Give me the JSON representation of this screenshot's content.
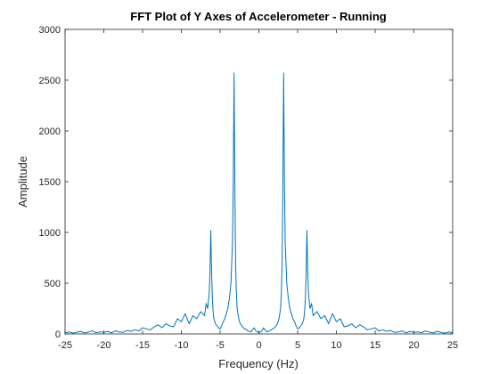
{
  "chart_data": {
    "type": "line",
    "title": "FFT Plot of Y Axes of Accelerometer - Running",
    "xlabel": "Frequency (Hz)",
    "ylabel": "Amplitude",
    "xlim": [
      -25,
      25
    ],
    "ylim": [
      0,
      3000
    ],
    "xticks": [
      -25,
      -20,
      -15,
      -10,
      -5,
      0,
      5,
      10,
      15,
      20,
      25
    ],
    "yticks": [
      0,
      500,
      1000,
      1500,
      2000,
      2500,
      3000
    ],
    "grid": false,
    "box": true,
    "line_color": "#0072BD",
    "series": [
      {
        "x": [
          -25,
          -24.5,
          -24,
          -23.5,
          -23,
          -22.5,
          -22,
          -21.5,
          -21,
          -20.5,
          -20,
          -19.5,
          -19,
          -18.5,
          -18,
          -17.5,
          -17,
          -16.5,
          -16,
          -15.5,
          -15,
          -14.5,
          -14,
          -13.5,
          -13,
          -12.5,
          -12,
          -11.5,
          -11,
          -10.5,
          -10,
          -9.5,
          -9,
          -8.5,
          -8,
          -7.5,
          -7,
          -6.8,
          -6.6,
          -6.4,
          -6.3,
          -6.2,
          -6.1,
          -6.0,
          -5.9,
          -5.8,
          -5.6,
          -5.4,
          -5.2,
          -5.0,
          -4.8,
          -4.6,
          -4.4,
          -4.2,
          -4.0,
          -3.8,
          -3.6,
          -3.4,
          -3.3,
          -3.2,
          -3.1,
          -3.0,
          -2.9,
          -2.8,
          -2.6,
          -2.4,
          -2.2,
          -2.0,
          -1.8,
          -1.6,
          -1.4,
          -1.2,
          -1.0,
          -0.8,
          -0.6,
          -0.4,
          -0.2,
          0,
          0.2,
          0.4,
          0.6,
          0.8,
          1.0,
          1.2,
          1.4,
          1.6,
          1.8,
          2.0,
          2.2,
          2.4,
          2.6,
          2.8,
          2.9,
          3.0,
          3.1,
          3.2,
          3.3,
          3.4,
          3.6,
          3.8,
          4.0,
          4.2,
          4.4,
          4.6,
          4.8,
          5.0,
          5.2,
          5.4,
          5.6,
          5.8,
          5.9,
          6.0,
          6.1,
          6.2,
          6.3,
          6.4,
          6.6,
          6.8,
          7,
          7.5,
          8,
          8.5,
          9,
          9.5,
          10,
          10.5,
          11,
          11.5,
          12,
          12.5,
          13,
          13.5,
          14,
          14.5,
          15,
          15.5,
          16,
          16.5,
          17,
          17.5,
          18,
          18.5,
          19,
          19.5,
          20,
          20.5,
          21,
          21.5,
          22,
          22.5,
          23,
          23.5,
          24,
          24.5,
          25
        ],
        "y": [
          10,
          20,
          8,
          15,
          25,
          10,
          18,
          30,
          12,
          20,
          15,
          25,
          10,
          30,
          20,
          15,
          35,
          25,
          40,
          30,
          60,
          50,
          40,
          70,
          90,
          60,
          100,
          80,
          70,
          150,
          120,
          200,
          100,
          180,
          150,
          220,
          180,
          300,
          250,
          400,
          630,
          1020,
          620,
          350,
          220,
          150,
          100,
          80,
          60,
          50,
          80,
          120,
          150,
          200,
          250,
          350,
          500,
          900,
          1500,
          2570,
          1500,
          700,
          400,
          250,
          150,
          100,
          80,
          60,
          50,
          40,
          30,
          25,
          20,
          40,
          60,
          30,
          20,
          10,
          20,
          30,
          60,
          40,
          20,
          25,
          30,
          40,
          50,
          60,
          80,
          100,
          150,
          250,
          400,
          700,
          1500,
          2570,
          1500,
          900,
          500,
          350,
          250,
          200,
          150,
          120,
          80,
          50,
          60,
          80,
          100,
          150,
          220,
          350,
          620,
          1020,
          630,
          400,
          250,
          300,
          180,
          220,
          150,
          180,
          100,
          200,
          120,
          150,
          70,
          80,
          100,
          60,
          90,
          70,
          40,
          50,
          60,
          30,
          40,
          25,
          35,
          15,
          20,
          30,
          10,
          25,
          15,
          20,
          12,
          30,
          18,
          10,
          25,
          15,
          8,
          20,
          10
        ]
      }
    ]
  }
}
